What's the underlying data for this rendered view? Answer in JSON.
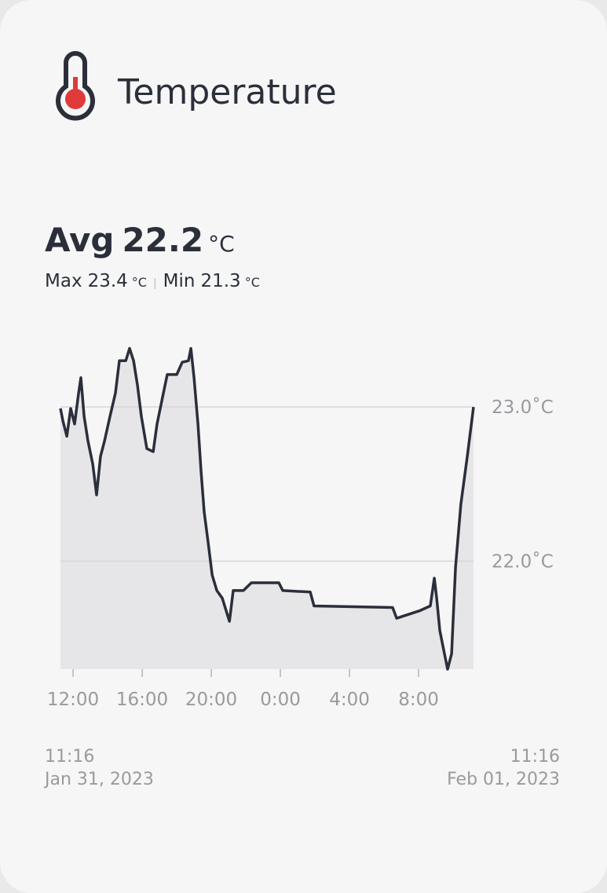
{
  "header": {
    "title": "Temperature"
  },
  "stats": {
    "avg_label": "Avg",
    "avg": 22.2,
    "unit": "°C",
    "max_label": "Max",
    "max": 23.4,
    "min_label": "Min",
    "min": 21.3
  },
  "chart_data": {
    "type": "line",
    "x": [
      11.27,
      11.41,
      11.64,
      11.86,
      12.09,
      12.32,
      12.45,
      12.64,
      12.86,
      13.14,
      13.36,
      13.59,
      13.82,
      14.14,
      14.45,
      14.68,
      15.05,
      15.27,
      15.5,
      15.73,
      15.95,
      16.27,
      16.64,
      16.86,
      17.23,
      17.45,
      18.0,
      18.32,
      18.68,
      18.82,
      19.0,
      19.23,
      19.41,
      19.59,
      19.82,
      20.05,
      20.32,
      20.64,
      21.05,
      21.27,
      21.86,
      22.32,
      23.91,
      24.14,
      25.73,
      25.95,
      30.5,
      30.73,
      32.09,
      32.68,
      32.91,
      33.05,
      33.23,
      33.5,
      33.68,
      33.91,
      34.14,
      34.45,
      34.82,
      35.18
    ],
    "values": [
      22.99,
      22.91,
      22.81,
      22.99,
      22.89,
      23.09,
      23.19,
      22.94,
      22.78,
      22.63,
      22.43,
      22.68,
      22.78,
      22.94,
      23.09,
      23.3,
      23.3,
      23.38,
      23.3,
      23.14,
      22.94,
      22.73,
      22.71,
      22.89,
      23.09,
      23.21,
      23.21,
      23.29,
      23.3,
      23.38,
      23.19,
      22.89,
      22.58,
      22.32,
      22.12,
      21.91,
      21.81,
      21.76,
      21.61,
      21.81,
      21.81,
      21.86,
      21.86,
      21.81,
      21.8,
      21.71,
      21.7,
      21.63,
      21.68,
      21.71,
      21.89,
      21.76,
      21.55,
      21.4,
      21.3,
      21.4,
      21.96,
      22.37,
      22.68,
      23.0
    ],
    "color": "#2b2f3a",
    "area_color": "#e6e6e9",
    "xlim": [
      11.27,
      35.18
    ],
    "xticks": [
      {
        "value": 12,
        "label": "12:00"
      },
      {
        "value": 16,
        "label": "16:00"
      },
      {
        "value": 20,
        "label": "20:00"
      },
      {
        "value": 24,
        "label": "0:00"
      },
      {
        "value": 28,
        "label": "4:00"
      },
      {
        "value": 32,
        "label": "8:00"
      }
    ],
    "ylim": [
      21.3,
      23.5
    ],
    "yticks": [
      {
        "value": 22,
        "label": "22.0˚C"
      },
      {
        "value": 23,
        "label": "23.0˚C"
      }
    ],
    "grid": true
  },
  "footer": {
    "start_time": "11:16",
    "start_date": "Jan 31, 2023",
    "end_time": "11:16",
    "end_date": "Feb 01, 2023"
  }
}
